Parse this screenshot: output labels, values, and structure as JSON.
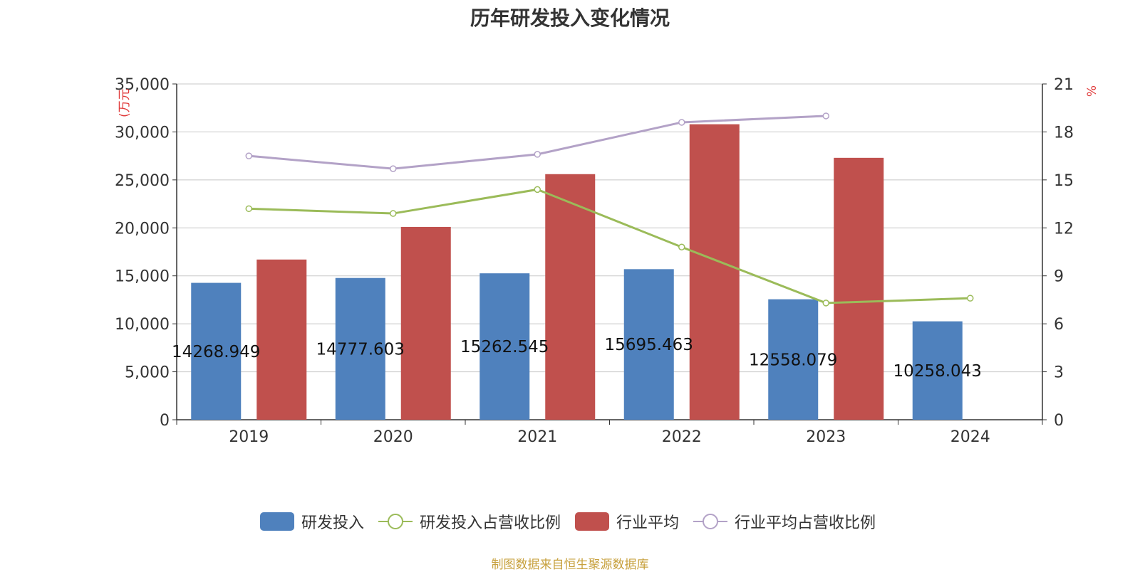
{
  "chart_data": {
    "type": "bar",
    "title": "历年研发投入变化情况",
    "categories": [
      "2019",
      "2020",
      "2021",
      "2022",
      "2023",
      "2024"
    ],
    "y_left": {
      "label": "(万元",
      "ylim": [
        0,
        35000
      ],
      "ticks": [
        0,
        5000,
        10000,
        15000,
        20000,
        25000,
        30000,
        35000
      ],
      "tick_labels": [
        "0",
        "5,000",
        "10,000",
        "15,000",
        "20,000",
        "25,000",
        "30,000",
        "35,000"
      ]
    },
    "y_right": {
      "label": "%",
      "ylim": [
        0,
        21
      ],
      "ticks": [
        0,
        3,
        6,
        9,
        12,
        15,
        18,
        21
      ],
      "tick_labels": [
        "0",
        "3",
        "6",
        "9",
        "12",
        "15",
        "18",
        "21"
      ]
    },
    "grid": true,
    "legend_position": "bottom",
    "series": [
      {
        "name": "研发投入",
        "type": "bar",
        "axis": "left",
        "color": "#4f81bd",
        "values": [
          14268.949,
          14777.603,
          15262.545,
          15695.463,
          12558.079,
          10258.043
        ],
        "labels": [
          "14268.949",
          "14777.603",
          "15262.545",
          "15695.463",
          "12558.079",
          "10258.043"
        ]
      },
      {
        "name": "研发投入占营收比例",
        "type": "line",
        "axis": "right",
        "color": "#9bbb59",
        "values": [
          13.2,
          12.9,
          14.4,
          10.8,
          7.3,
          7.6
        ]
      },
      {
        "name": "行业平均",
        "type": "bar",
        "axis": "left",
        "color": "#c0504d",
        "values": [
          16700,
          20100,
          25600,
          30800,
          27300,
          null
        ]
      },
      {
        "name": "行业平均占营收比例",
        "type": "line",
        "axis": "right",
        "color": "#b3a2c7",
        "values": [
          16.5,
          15.7,
          16.6,
          18.6,
          19.0,
          null
        ]
      }
    ],
    "source": "制图数据来自恒生聚源数据库"
  },
  "colors": {
    "axis_label": "#e03a3a",
    "grid": "#c8c8c8",
    "source_text": "#c7a03c"
  }
}
